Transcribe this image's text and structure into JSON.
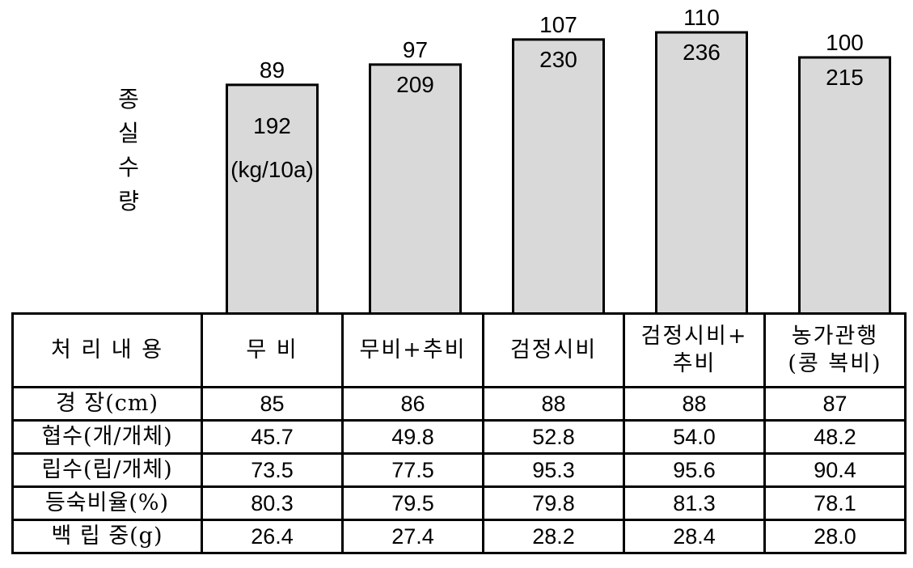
{
  "chart_data": {
    "type": "bar",
    "ylabel": "종실수량",
    "ylabel_chars": [
      "종",
      "실",
      "수",
      "량"
    ],
    "unit": "(kg/10a)",
    "categories": [
      "무 비",
      "무비+추비",
      "검정시비",
      "검정시비+\n추비",
      "농가관행\n(콩 복비)"
    ],
    "series": [
      {
        "values": [
          192,
          209,
          230,
          236,
          215
        ]
      }
    ],
    "index_labels": [
      89,
      97,
      107,
      110,
      100
    ],
    "ylim": [
      0,
      236
    ],
    "grid": false,
    "bar_color": "#d9d9d9",
    "edge_color": "#000000"
  },
  "table": {
    "header": {
      "row_label": "처 리 내 용",
      "columns": [
        "무 비",
        "무비+추비",
        "검정시비",
        "검정시비+\n추비",
        "농가관행\n(콩 복비)"
      ]
    },
    "rows": [
      {
        "label": "경    장(cm)",
        "values": [
          "85",
          "86",
          "88",
          "88",
          "87"
        ]
      },
      {
        "label": "협수(개/개체)",
        "values": [
          "45.7",
          "49.8",
          "52.8",
          "54.0",
          "48.2"
        ]
      },
      {
        "label": "립수(립/개체)",
        "values": [
          "73.5",
          "77.5",
          "95.3",
          "95.6",
          "90.4"
        ]
      },
      {
        "label": "등숙비율(%)",
        "values": [
          "80.3",
          "79.5",
          "79.8",
          "81.3",
          "78.1"
        ]
      },
      {
        "label": "백 립 중(g)",
        "values": [
          "26.4",
          "27.4",
          "28.2",
          "28.4",
          "28.0"
        ]
      }
    ]
  }
}
